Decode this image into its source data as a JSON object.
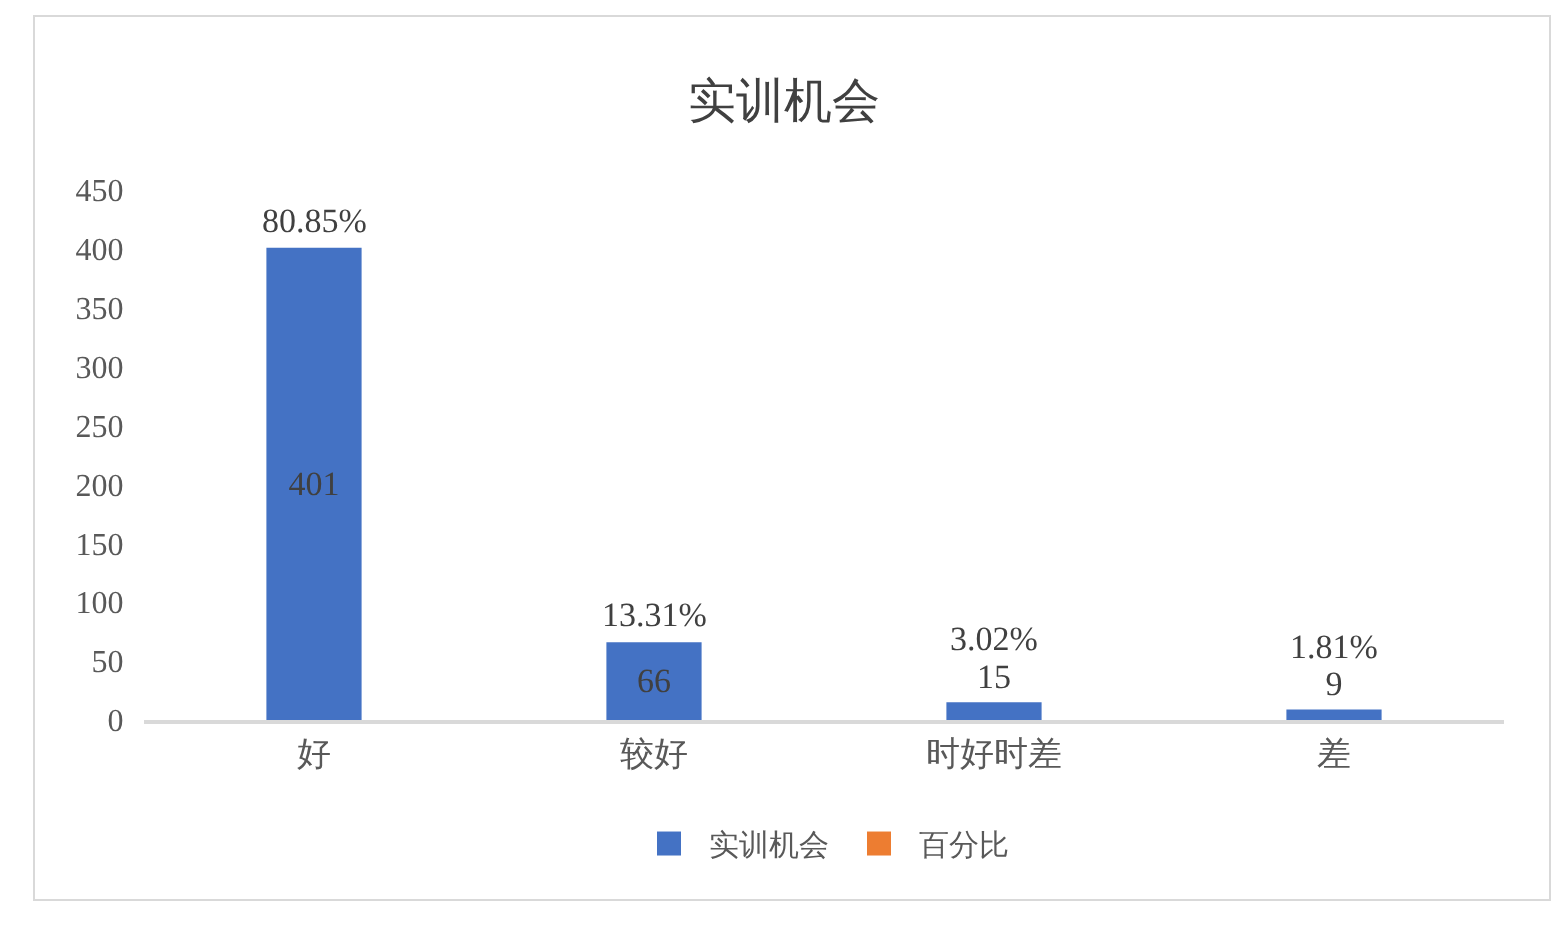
{
  "chart_data": {
    "type": "bar",
    "title": "实训机会",
    "categories": [
      "好",
      "较好",
      "时好时差",
      "差"
    ],
    "series": [
      {
        "name": "实训机会",
        "color": "#4472c4",
        "values": [
          401,
          66,
          15,
          9
        ]
      },
      {
        "name": "百分比",
        "color": "#ed7d31",
        "values": [
          null,
          null,
          null,
          null
        ]
      }
    ],
    "ylim": [
      0,
      450
    ],
    "yticks": [
      0,
      50,
      100,
      150,
      200,
      250,
      300,
      350,
      400,
      450
    ],
    "data_labels": true,
    "grid": false,
    "legend": "bottom",
    "annotations": [
      {
        "text": "80.85%",
        "x": "好",
        "y": 401
      },
      {
        "text": "13.31%",
        "x": "较好",
        "y": 66
      },
      {
        "text": "3.02%",
        "x": "时好时差",
        "y": 15
      },
      {
        "text": "1.81%",
        "x": "差",
        "y": 9
      }
    ]
  }
}
